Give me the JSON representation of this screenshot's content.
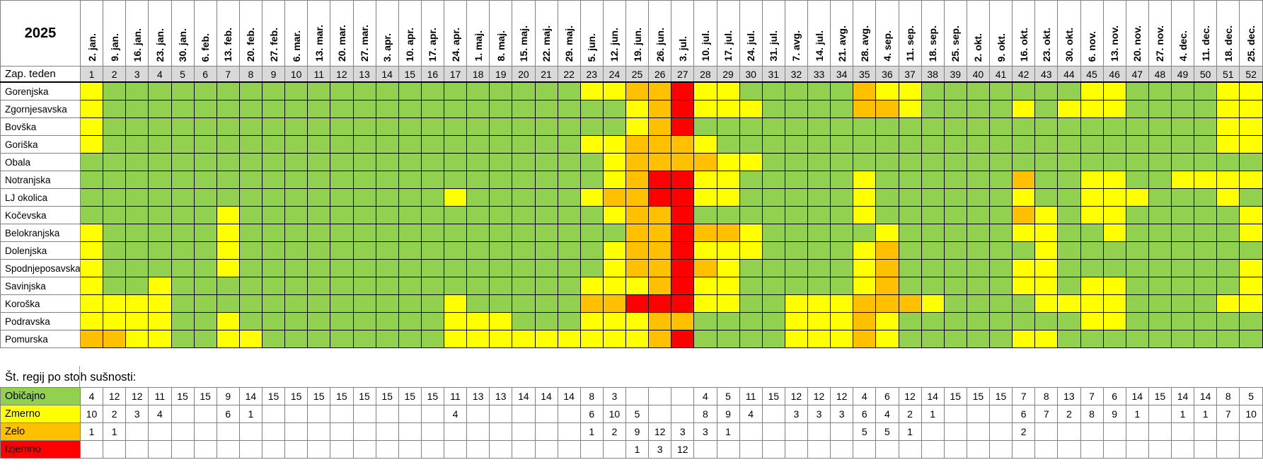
{
  "year": "2025",
  "week_label": "Zap. teden",
  "summary_title": {
    "left": "Št. regij po sto",
    "right": "h sušnosti:"
  },
  "chart_data": {
    "type": "heatmap",
    "title": "2025 — weekly drought level by Slovenian region",
    "xlabel": "Zap. teden",
    "legend_position": "bottom-left",
    "levels": {
      "G": {
        "name": "normal",
        "label": "Običajno",
        "color": "#92d050"
      },
      "Y": {
        "name": "moderate",
        "label": "Zmerno",
        "color": "#ffff00"
      },
      "O": {
        "name": "severe",
        "label": "Zelo",
        "color": "#ffc000"
      },
      "R": {
        "name": "extreme",
        "label": "Izjemno",
        "color": "#ff0000"
      }
    },
    "week_numbers": [
      1,
      2,
      3,
      4,
      5,
      6,
      7,
      8,
      9,
      10,
      11,
      12,
      13,
      14,
      15,
      16,
      17,
      18,
      19,
      20,
      21,
      22,
      23,
      24,
      25,
      26,
      27,
      28,
      29,
      30,
      31,
      32,
      33,
      34,
      35,
      36,
      37,
      38,
      39,
      40,
      41,
      42,
      43,
      44,
      45,
      46,
      47,
      48,
      49,
      50,
      51,
      52
    ],
    "dates": [
      "2. jan.",
      "9. jan.",
      "16. jan.",
      "23. jan.",
      "30. jan.",
      "6. feb.",
      "13. feb.",
      "20. feb.",
      "27. feb.",
      "6. mar.",
      "13. mar.",
      "20. mar.",
      "27. mar.",
      "3. apr.",
      "10. apr.",
      "17. apr.",
      "24. apr.",
      "1. maj.",
      "8. maj.",
      "15. maj.",
      "22. maj.",
      "29. maj.",
      "5. jun.",
      "12. jun.",
      "19. jun.",
      "26. jun.",
      "3. jul.",
      "10. jul.",
      "17. jul.",
      "24. jul.",
      "31. jul.",
      "7. avg.",
      "14. jul.",
      "21. avg.",
      "28. avg.",
      "4. sep.",
      "11. sep.",
      "18. sep.",
      "25. sep.",
      "2. okt.",
      "9. okt.",
      "16. okt.",
      "23. okt.",
      "30. okt.",
      "6. nov.",
      "13. nov.",
      "20. nov.",
      "27. nov.",
      "4. dec.",
      "11. dec.",
      "18. dec.",
      "25. dec."
    ],
    "rows": [
      {
        "region": "Gorenjska",
        "cells": "YGGGGGGGGGGGGGGGGGGGGGYYOORYYGGGGGOYYGGGGGGGYYGGGGYY"
      },
      {
        "region": "Zgornjesavska",
        "cells": "YGGGGGGGGGGGGGGGGGGGGGGGYORYYYGGGGOOYGGGGYGYYYGGGGYY"
      },
      {
        "region": "Bovška",
        "cells": "YGGGGGGGGGGGGGGGGGGGGGGGYORGGGGGGGGGGGGGGGGGGGGGGGYY"
      },
      {
        "region": "Goriška",
        "cells": "YGGGGGGGGGGGGGGGGGGGGGYYOOOYGGGGGGGGGGGGGGGGGGGGGGYY"
      },
      {
        "region": "Obala",
        "cells": "GGGGGGGGGGGGGGGGGGGGGGGYOOOOYYGGGGGGGGGGGGGGGGGGGGGG"
      },
      {
        "region": "Notranjska",
        "cells": "GGGGGGGGGGGGGGGGGGGGGGGYORRYYGGGGGYGGGGGGOGGYYGGYYYY"
      },
      {
        "region": "LJ okolica",
        "cells": "GGGGGGGGGGGGGGGGYGGGGGYOORRYYGGGGGYGGGGGGYGGYYYGGGYG"
      },
      {
        "region": "Kočevska",
        "cells": "GGGGGGYGGGGGGGGGGGGGGGGYOORGGGGGGGYGGGGGGOYGYYGGGGGY"
      },
      {
        "region": "Belokranjska",
        "cells": "YGGGGGYGGGGGGGGGGGGGGGGGOOROOYGGGGGYGGGGGYYGGYGGGGGY"
      },
      {
        "region": "Dolenjska",
        "cells": "YGGGGGYGGGGGGGGGGGGGGGGYOORYYYGGGGYOGGGGGGYGGGGGGGGG"
      },
      {
        "region": "Spodnjeposavska",
        "cells": "YGGGGGYGGGGGGGGGGGGGGGGYOOROYGGGGGYOGGGGGYYGGGGGGGGY"
      },
      {
        "region": "Savinjska",
        "cells": "YGGYGGGGGGGGGGGGGGGGGGYYYORYYGGGGGYOGGGGGYYGYYGGGGGY"
      },
      {
        "region": "Koroška",
        "cells": "YYYYGGGGGGGGGGGGYGGGGGOORRRYYGGYYYOOOYGGGGYYYYGGGGYY"
      },
      {
        "region": "Podravska",
        "cells": "YYYYGGYGGGGGGGGGYYYGGGYYYOOGGGGYYYOYGGGGGGGGYYGGGGGG"
      },
      {
        "region": "Pomurska",
        "cells": "OOYYGGYYGGGGGGGGYYYYYYYYYORGGGGYYYOYGGGGGYYGGGGGGGGG"
      }
    ],
    "summary": {
      "title": "Št. regij po stoh sušnosti:",
      "rows": [
        {
          "level": "G",
          "values": [
            4,
            12,
            12,
            11,
            15,
            15,
            9,
            14,
            15,
            15,
            15,
            15,
            15,
            15,
            15,
            15,
            11,
            13,
            13,
            14,
            14,
            14,
            8,
            3,
            "",
            "",
            "",
            4,
            5,
            11,
            15,
            12,
            12,
            12,
            4,
            6,
            12,
            14,
            15,
            15,
            15,
            7,
            8,
            13,
            7,
            6,
            14,
            15,
            14,
            14,
            8,
            5
          ]
        },
        {
          "level": "Y",
          "values": [
            10,
            2,
            3,
            4,
            "",
            "",
            6,
            1,
            "",
            "",
            "",
            "",
            "",
            "",
            "",
            "",
            4,
            "",
            "",
            "",
            "",
            "",
            6,
            10,
            5,
            "",
            "",
            8,
            9,
            4,
            "",
            3,
            3,
            3,
            6,
            4,
            2,
            1,
            "",
            "",
            "",
            6,
            7,
            2,
            8,
            9,
            1,
            "",
            1,
            1,
            7,
            10
          ]
        },
        {
          "level": "O",
          "values": [
            1,
            1,
            "",
            "",
            "",
            "",
            "",
            "",
            "",
            "",
            "",
            "",
            "",
            "",
            "",
            "",
            "",
            "",
            "",
            "",
            "",
            "",
            1,
            2,
            9,
            12,
            3,
            3,
            1,
            "",
            "",
            "",
            "",
            "",
            5,
            5,
            1,
            "",
            "",
            "",
            "",
            2,
            "",
            "",
            "",
            "",
            "",
            "",
            "",
            "",
            "",
            ""
          ]
        },
        {
          "level": "R",
          "values": [
            "",
            "",
            "",
            "",
            "",
            "",
            "",
            "",
            "",
            "",
            "",
            "",
            "",
            "",
            "",
            "",
            "",
            "",
            "",
            "",
            "",
            "",
            "",
            "",
            1,
            3,
            12,
            "",
            "",
            "",
            "",
            "",
            "",
            "",
            "",
            "",
            "",
            "",
            "",
            "",
            "",
            "",
            "",
            "",
            "",
            "",
            "",
            "",
            "",
            "",
            "",
            ""
          ]
        }
      ]
    }
  }
}
